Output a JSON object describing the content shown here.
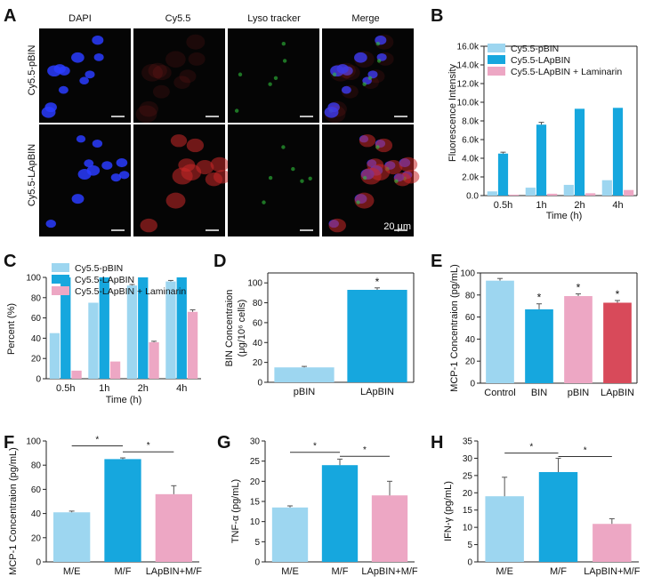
{
  "colors": {
    "light_blue": "#9dd6f0",
    "blue": "#16a7de",
    "pink": "#eda7c4",
    "red": "#d84a5a",
    "dapi": "#2a3cff",
    "cy55": "#c82828",
    "lyso": "#2fbf3a"
  },
  "panel_a": {
    "letter": "A",
    "columns": [
      "DAPI",
      "Cy5.5",
      "Lyso tracker",
      "Merge"
    ],
    "rows": [
      "Cy5.5-pBIN",
      "Cy5.5-LApBIN"
    ],
    "scale_label": "20 μm"
  },
  "chart_data": [
    {
      "panel": "B",
      "type": "bar",
      "ylabel": "Fluorescence Intensity",
      "xlabel": "Time (h)",
      "categories": [
        "0.5h",
        "1h",
        "2h",
        "4h"
      ],
      "ylim": [
        0,
        16000
      ],
      "yticks": [
        0,
        2000,
        4000,
        6000,
        8000,
        10000,
        12000,
        14000,
        16000
      ],
      "yticklabels": [
        "0.0",
        "2.0k",
        "4.0k",
        "6.0k",
        "8.0k",
        "10.0k",
        "12.0k",
        "14.0k",
        "16.0k"
      ],
      "legend": "top",
      "series": [
        {
          "name": "Cy5.5-pBIN",
          "color": "#9dd6f0",
          "values": [
            450,
            850,
            1150,
            1650
          ],
          "errors": [
            0,
            0,
            0,
            0
          ]
        },
        {
          "name": "Cy5.5-LApBIN",
          "color": "#16a7de",
          "values": [
            4500,
            7600,
            9300,
            9400
          ],
          "errors": [
            150,
            250,
            0,
            0
          ]
        },
        {
          "name": "Cy5.5-LApBIN + Laminarin",
          "color": "#eda7c4",
          "values": [
            100,
            200,
            250,
            600
          ],
          "errors": [
            0,
            0,
            0,
            0
          ]
        }
      ]
    },
    {
      "panel": "C",
      "type": "bar",
      "ylabel": "Percent (%)",
      "xlabel": "Time (h)",
      "categories": [
        "0.5h",
        "1h",
        "2h",
        "4h"
      ],
      "ylim": [
        0,
        100
      ],
      "yticks": [
        0,
        20,
        40,
        60,
        80,
        100
      ],
      "yticklabels": [
        "0",
        "20",
        "40",
        "60",
        "80",
        "100"
      ],
      "legend": "top",
      "series": [
        {
          "name": "Cy5.5-pBIN",
          "color": "#9dd6f0",
          "values": [
            45,
            75,
            92,
            96
          ],
          "errors": [
            0,
            0,
            1,
            1
          ]
        },
        {
          "name": "Cy5.5-LApBIN",
          "color": "#16a7de",
          "values": [
            100,
            100,
            100,
            100
          ],
          "errors": [
            0,
            0,
            0,
            0
          ]
        },
        {
          "name": "Cy5.5-LApBIN + Laminarin",
          "color": "#eda7c4",
          "values": [
            8,
            17,
            36,
            66
          ],
          "errors": [
            0,
            0,
            1,
            2
          ]
        }
      ]
    },
    {
      "panel": "D",
      "type": "bar",
      "ylabel": "BIN Concentraion",
      "ylabel2": "(μg/10⁶ cells)",
      "categories": [
        "pBIN",
        "LApBIN"
      ],
      "ylim": [
        0,
        110
      ],
      "yticks": [
        0,
        20,
        40,
        60,
        80,
        100
      ],
      "yticklabels": [
        "0",
        "20",
        "40",
        "60",
        "80",
        "100"
      ],
      "values": [
        15,
        93
      ],
      "errors": [
        1,
        2
      ],
      "colors": [
        "#9dd6f0",
        "#16a7de"
      ],
      "stars": [
        "",
        "*"
      ]
    },
    {
      "panel": "E",
      "type": "bar",
      "ylabel": "MCP-1 Concentraion (pg/mL)",
      "categories": [
        "Control",
        "BIN",
        "pBIN",
        "LApBIN"
      ],
      "ylim": [
        0,
        100
      ],
      "yticks": [
        0,
        20,
        40,
        60,
        80,
        100
      ],
      "yticklabels": [
        "0",
        "20",
        "40",
        "60",
        "80",
        "100"
      ],
      "values": [
        93,
        67,
        79,
        73
      ],
      "errors": [
        2,
        5,
        2,
        2
      ],
      "colors": [
        "#9dd6f0",
        "#16a7de",
        "#eda7c4",
        "#d84a5a"
      ],
      "stars": [
        "",
        "*",
        "*",
        "*"
      ]
    },
    {
      "panel": "F",
      "type": "bar",
      "ylabel": "MCP-1 Concentraion (pg/mL)",
      "categories": [
        "M/E",
        "M/F",
        "LApBIN+M/F"
      ],
      "ylim": [
        0,
        100
      ],
      "yticks": [
        0,
        20,
        40,
        60,
        80,
        100
      ],
      "yticklabels": [
        "0",
        "20",
        "40",
        "60",
        "80",
        "100"
      ],
      "values": [
        41,
        85,
        56
      ],
      "errors": [
        1,
        1,
        7
      ],
      "colors": [
        "#9dd6f0",
        "#16a7de",
        "#eda7c4"
      ],
      "brackets": [
        {
          "from": 0,
          "to": 1,
          "y": 96,
          "label": "*"
        },
        {
          "from": 1,
          "to": 2,
          "y": 91,
          "label": "*"
        }
      ]
    },
    {
      "panel": "G",
      "type": "bar",
      "ylabel": "TNF-α (pg/mL)",
      "categories": [
        "M/E",
        "M/F",
        "LApBIN+M/F"
      ],
      "ylim": [
        0,
        30
      ],
      "yticks": [
        0,
        5,
        10,
        15,
        20,
        25,
        30
      ],
      "yticklabels": [
        "0",
        "5",
        "10",
        "15",
        "20",
        "25",
        "30"
      ],
      "values": [
        13.5,
        24,
        16.5
      ],
      "errors": [
        0.4,
        1.5,
        3.5
      ],
      "colors": [
        "#9dd6f0",
        "#16a7de",
        "#eda7c4"
      ],
      "brackets": [
        {
          "from": 0,
          "to": 1,
          "y": 27.2,
          "label": "*"
        },
        {
          "from": 1,
          "to": 2,
          "y": 26.2,
          "label": "*"
        }
      ]
    },
    {
      "panel": "H",
      "type": "bar",
      "ylabel": "IFN-γ (pg/mL)",
      "categories": [
        "M/E",
        "M/F",
        "LApBIN+M/F"
      ],
      "ylim": [
        0,
        35
      ],
      "yticks": [
        0,
        5,
        10,
        15,
        20,
        25,
        30,
        35
      ],
      "yticklabels": [
        "0",
        "5",
        "10",
        "15",
        "20",
        "25",
        "30",
        "35"
      ],
      "values": [
        19,
        26,
        11
      ],
      "errors": [
        5.5,
        4,
        1.5
      ],
      "colors": [
        "#9dd6f0",
        "#16a7de",
        "#eda7c4"
      ],
      "brackets": [
        {
          "from": 0,
          "to": 1,
          "y": 31.5,
          "label": "*"
        },
        {
          "from": 1,
          "to": 2,
          "y": 30.5,
          "label": "*"
        }
      ]
    }
  ]
}
